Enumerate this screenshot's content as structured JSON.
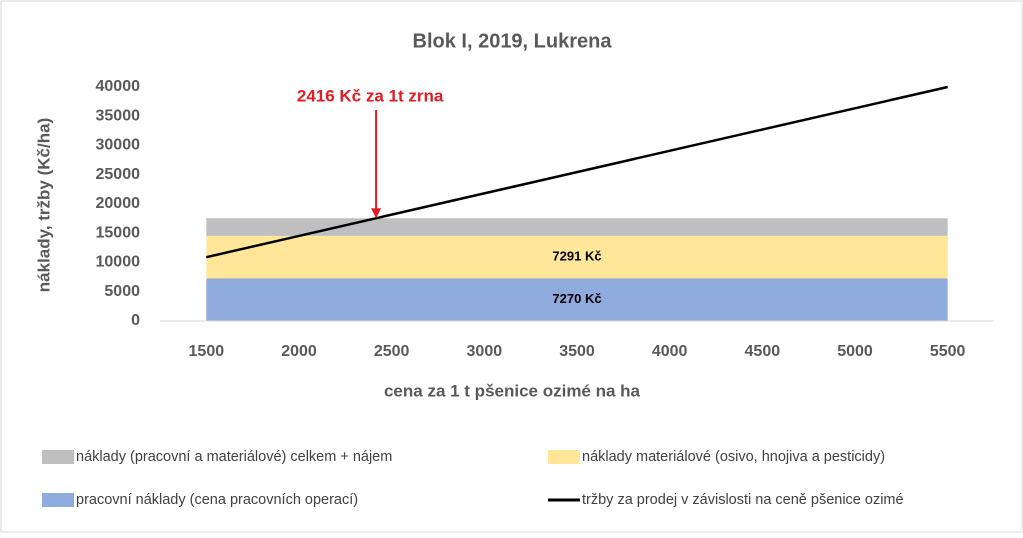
{
  "chart_data": {
    "type": "area",
    "title": "Blok I, 2019, Lukrena",
    "xlabel": "cena za 1 t pšenice ozimé na ha",
    "ylabel": "náklady, tržby (Kč/ha)",
    "x": [
      1500,
      5500
    ],
    "xlim": [
      1250,
      5750
    ],
    "xticks": [
      1500,
      2000,
      2500,
      3000,
      3500,
      4000,
      4500,
      5000,
      5500
    ],
    "ylim": [
      0,
      40000
    ],
    "yticks": [
      0,
      5000,
      10000,
      15000,
      20000,
      25000,
      30000,
      35000,
      40000
    ],
    "stacked": true,
    "series": [
      {
        "name": "náklady (pracovní a materiálové) celkem + nájem",
        "color": "#bfbfbf",
        "values": [
          3010,
          3010
        ]
      },
      {
        "name": "náklady materiálové (osivo, hnojiva a pesticidy)",
        "color": "#ffe699",
        "values": [
          7291,
          7291
        ],
        "value_labels": [
          "7291 Kč",
          null
        ]
      },
      {
        "name": "pracovní náklady (cena pracovních operací)",
        "color": "#8faadc",
        "values": [
          7270,
          7270
        ],
        "value_labels": [
          "7270 Kč",
          null
        ]
      },
      {
        "name": "tržby za prodej v závislosti na ceně pšenice ozimé",
        "color": "#000000",
        "type": "line",
        "values": [
          10909,
          40000
        ]
      }
    ],
    "annotation": {
      "text": "2416 Kč za 1t zrna",
      "x": 2416,
      "y": 17571,
      "color": "#e31b23"
    }
  }
}
